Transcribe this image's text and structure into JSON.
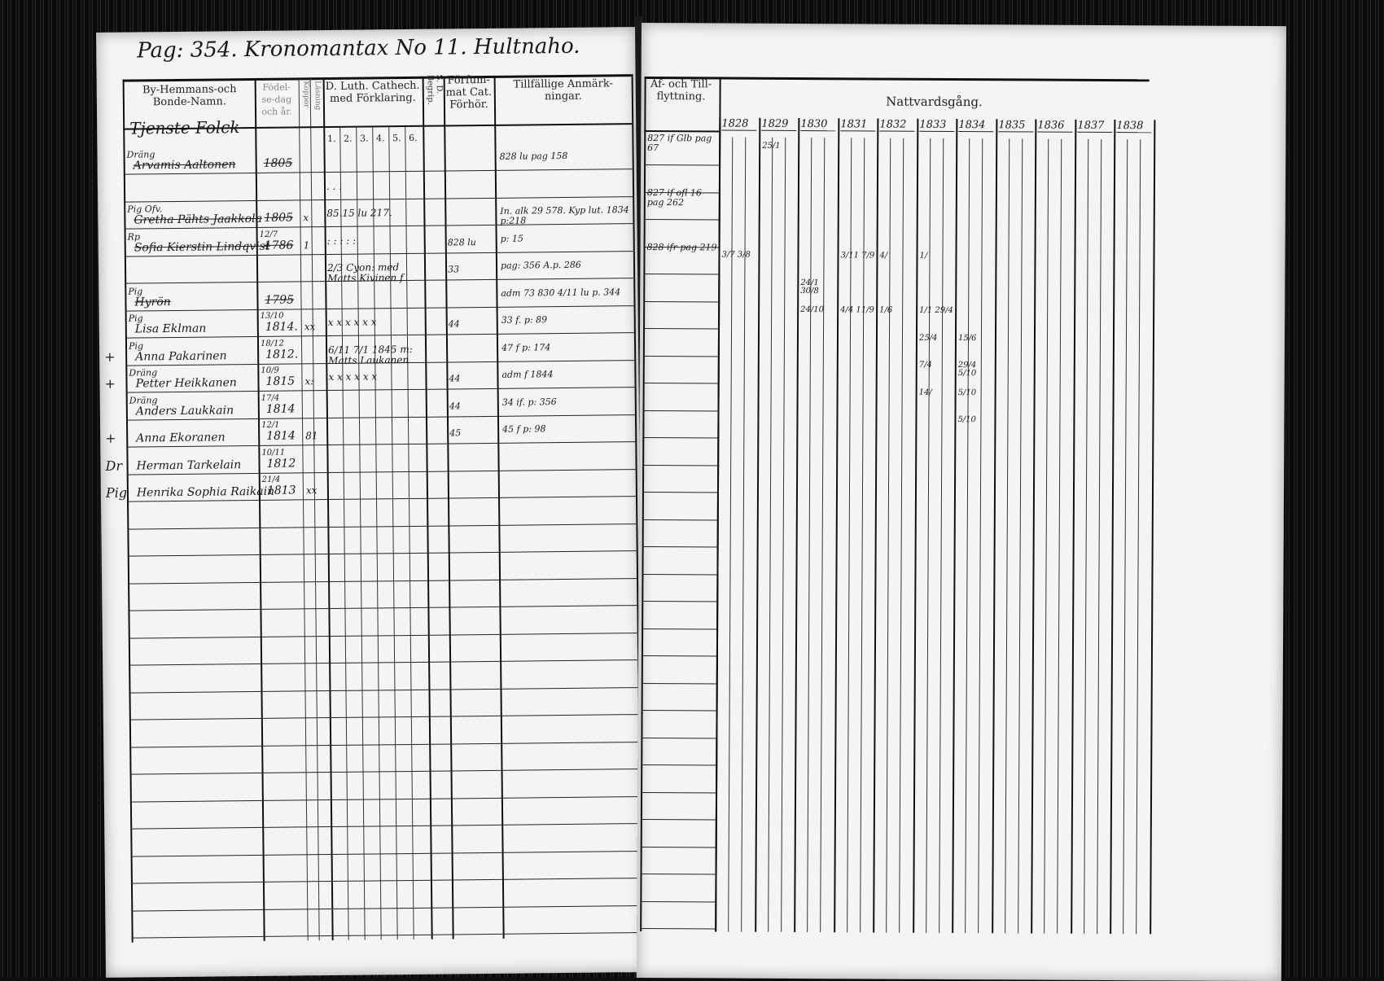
{
  "left_page": {
    "heading": "Pag: 354. Kronomantax No 11. Hultnaho.",
    "columns": {
      "name": "By-Hemmans-och Bonde-Namn.",
      "birth": "Födel-se-dag och år.",
      "small_1": "Koppor",
      "small_2": "Läsning",
      "catechism": "D. Luth. Cathech. med Förklaring.",
      "catechism_sub": [
        "1.",
        "2.",
        "3.",
        "4.",
        "5.",
        "6."
      ],
      "sd": "S. D. Begrip.",
      "forfum": "Förfum-mat Cat. Förhör.",
      "remarks": "Tillfällige Anmärk-ningar."
    },
    "section_label": "Tjenste Folck",
    "rows": [
      {
        "margin": "",
        "title": "Dräng",
        "name": "Arvamis Aaltonen",
        "struck": true,
        "birth_day": "",
        "birth": "1805",
        "marks": "",
        "cat": "",
        "forfum": "",
        "remark": "828 lu pag 158"
      },
      {
        "margin": "",
        "title": "",
        "name": "",
        "struck": false,
        "birth_day": "",
        "birth": "",
        "marks": "",
        "cat": ". . .",
        "forfum": "",
        "remark": ""
      },
      {
        "margin": "",
        "title": "Pig Ofv.",
        "name": "Gretha Pähts Jaakkola",
        "struck": true,
        "birth_day": "",
        "birth": "1805",
        "marks": "x",
        "cat": "85.15 lu 217.",
        "forfum": "",
        "remark": "In. alk 29 578. Kyp lut. 1834 p:218"
      },
      {
        "margin": "",
        "title": "Rp",
        "name": "Sofia Kierstin Lindqvist",
        "struck": true,
        "birth_day": "12/7",
        "birth": "1786",
        "marks": "1",
        "cat": ": : : : :",
        "forfum": "828 lu",
        "remark": "p: 15"
      },
      {
        "margin": "",
        "title": "",
        "name": "",
        "struck": false,
        "birth_day": "",
        "birth": "",
        "marks": "",
        "cat": "2/3 Cyon: med Matts Kivinen f",
        "forfum": "33",
        "remark": "pag: 356  A.p. 286"
      },
      {
        "margin": "",
        "title": "Pig",
        "name": "Hyrön",
        "struck": true,
        "birth_day": "",
        "birth": "1795",
        "marks": "",
        "cat": "",
        "forfum": "",
        "remark": "adm 73 830  4/11 lu p. 344"
      },
      {
        "margin": "",
        "title": "Pig",
        "name": "Lisa Eklman",
        "struck": false,
        "birth_day": "13/10",
        "birth": "1814.",
        "marks": "xx",
        "cat": "x  x  x  x  x  x",
        "forfum": "44",
        "remark": "33 f. p: 89"
      },
      {
        "margin": "+",
        "title": "Pig",
        "name": "Anna Pakarinen",
        "struck": false,
        "birth_day": "18/12",
        "birth": "1812.",
        "marks": "",
        "cat": "6/11 7/1 1845 m: Matts Laukanen",
        "forfum": "",
        "remark": "47 f p: 174"
      },
      {
        "margin": "+",
        "title": "Dräng",
        "name": "Petter Heikkanen",
        "struck": false,
        "birth_day": "10/9",
        "birth": "1815",
        "marks": "x:",
        "cat": "x  x  x  x  x  x",
        "forfum": "44",
        "remark": "adm f 1844"
      },
      {
        "margin": "",
        "title": "Dräng",
        "name": "Anders Laukkain",
        "struck": false,
        "birth_day": "17/4",
        "birth": "1814",
        "marks": "",
        "cat": "",
        "forfum": "44",
        "remark": "34 if. p: 356"
      },
      {
        "margin": "+",
        "title": "",
        "name": "Anna Ekoranen",
        "struck": false,
        "birth_day": "12/1",
        "birth": "1814",
        "marks": "81",
        "cat": "",
        "forfum": "45",
        "remark": "45 f p: 98"
      },
      {
        "margin": "Dr",
        "title": "",
        "name": "Herman Tarkelain",
        "struck": false,
        "birth_day": "10/11",
        "birth": "1812",
        "marks": "",
        "cat": "",
        "forfum": "",
        "remark": ""
      },
      {
        "margin": "Pig",
        "title": "",
        "name": "Henrika Sophia Raikain",
        "struck": false,
        "birth_day": "21/4",
        "birth": "1813",
        "marks": "xx",
        "cat": "",
        "forfum": "",
        "remark": ""
      }
    ]
  },
  "right_page": {
    "columns": {
      "moving": "Af- och Till-flyttning.",
      "communion": "Nattvardsgång."
    },
    "years": [
      "1828",
      "1829",
      "1830",
      "1831",
      "1832",
      "1833",
      "1834",
      "1835",
      "1836",
      "1837",
      "1838"
    ],
    "moving_entries": [
      "827 if Glb pag 67",
      "",
      "827 if ofl 16 pag 262",
      "",
      "828 ifr pag 219",
      "",
      "",
      "",
      "",
      "",
      "",
      "",
      ""
    ],
    "communion_marks": [
      {
        "row": 0,
        "year": "1829",
        "text": "25/1"
      },
      {
        "row": 4,
        "year": "1828",
        "text": "3/7 3/8"
      },
      {
        "row": 4,
        "year": "1831",
        "text": "3/11 7/9"
      },
      {
        "row": 4,
        "year": "1832",
        "text": "4/"
      },
      {
        "row": 4,
        "year": "1833",
        "text": "1/"
      },
      {
        "row": 5,
        "year": "1830",
        "text": "24/1 30/8"
      },
      {
        "row": 6,
        "year": "1830",
        "text": "24/10"
      },
      {
        "row": 6,
        "year": "1831",
        "text": "4/4 11/9"
      },
      {
        "row": 6,
        "year": "1832",
        "text": "1/6"
      },
      {
        "row": 6,
        "year": "1833",
        "text": "1/1 29/4"
      },
      {
        "row": 7,
        "year": "1833",
        "text": "25/4"
      },
      {
        "row": 7,
        "year": "1834",
        "text": "15/6"
      },
      {
        "row": 8,
        "year": "1833",
        "text": "7/4"
      },
      {
        "row": 8,
        "year": "1834",
        "text": "29/4 5/10"
      },
      {
        "row": 9,
        "year": "1833",
        "text": "14/"
      },
      {
        "row": 9,
        "year": "1834",
        "text": "5/10"
      },
      {
        "row": 10,
        "year": "1834",
        "text": "5/10"
      }
    ]
  }
}
